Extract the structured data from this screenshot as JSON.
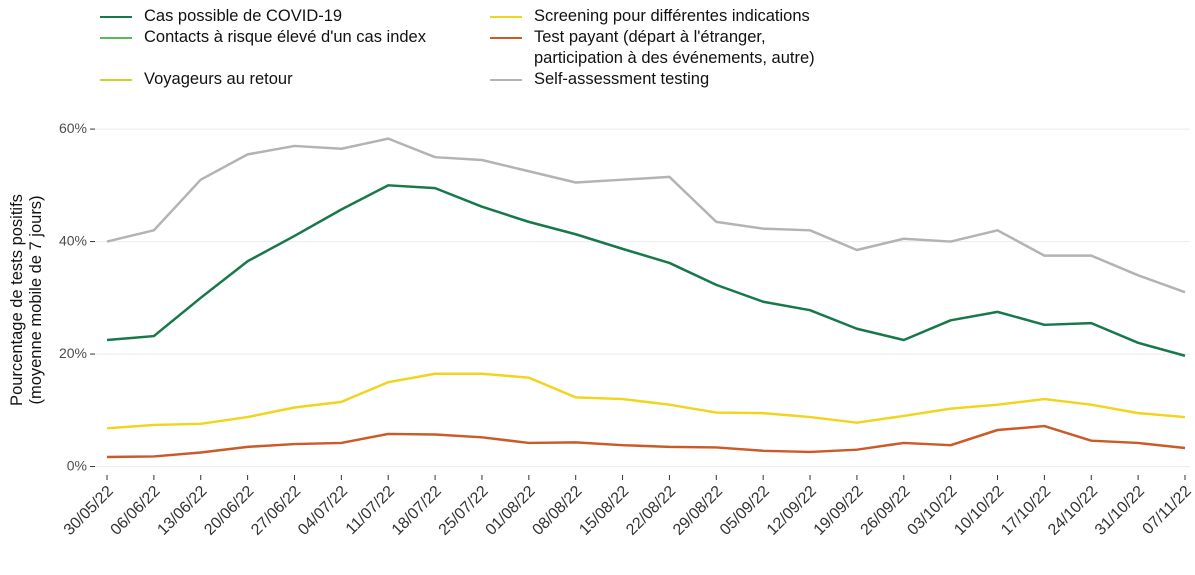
{
  "chart_data": {
    "type": "line",
    "categories": [
      "30/05/22",
      "06/06/22",
      "13/06/22",
      "20/06/22",
      "27/06/22",
      "04/07/22",
      "11/07/22",
      "18/07/22",
      "25/07/22",
      "01/08/22",
      "08/08/22",
      "15/08/22",
      "22/08/22",
      "29/08/22",
      "05/09/22",
      "12/09/22",
      "19/09/22",
      "26/09/22",
      "03/10/22",
      "10/10/22",
      "17/10/22",
      "24/10/22",
      "31/10/22",
      "07/11/22"
    ],
    "series": [
      {
        "name": "Cas possible de COVID-19",
        "color": "#17784a",
        "values": [
          22.5,
          23.2,
          30,
          36.5,
          41,
          45.7,
          50,
          49.5,
          46.2,
          43.5,
          41.3,
          38.7,
          36.2,
          32.3,
          29.3,
          27.8,
          24.5,
          22.5,
          26,
          27.5,
          25.2,
          25.5,
          22,
          19.7
        ]
      },
      {
        "name": "Contacts à risque élevé d'un cas index",
        "color": "#5cb85c",
        "values": [
          null,
          null,
          null,
          null,
          null,
          null,
          null,
          null,
          null,
          null,
          null,
          null,
          null,
          null,
          null,
          null,
          null,
          null,
          null,
          null,
          null,
          null,
          null,
          null
        ]
      },
      {
        "name": "Voyageurs au retour",
        "color": "#c9d42a",
        "values": [
          null,
          null,
          null,
          null,
          null,
          null,
          null,
          null,
          null,
          null,
          null,
          null,
          null,
          null,
          null,
          null,
          null,
          null,
          null,
          null,
          null,
          null,
          null,
          null
        ]
      },
      {
        "name": "Screening pour différentes indications",
        "color": "#f2d41c",
        "values": [
          6.8,
          7.4,
          7.6,
          8.8,
          10.5,
          11.5,
          15,
          16.5,
          16.5,
          15.8,
          12.3,
          12,
          11,
          9.6,
          9.5,
          8.8,
          7.8,
          9,
          10.3,
          11,
          12,
          11,
          9.5,
          8.8
        ]
      },
      {
        "name": "Test payant (départ à l'étranger,\nparticipation à des événements, autre)",
        "color": "#cc5a28",
        "values": [
          1.7,
          1.8,
          2.5,
          3.5,
          4.0,
          4.2,
          5.8,
          5.7,
          5.2,
          4.2,
          4.3,
          3.8,
          3.5,
          3.4,
          2.8,
          2.6,
          3.0,
          4.2,
          3.8,
          6.5,
          7.2,
          4.6,
          4.2,
          3.3
        ]
      },
      {
        "name": "Self-assessment testing",
        "color": "#b3b3b3",
        "values": [
          40,
          42,
          51,
          55.5,
          57,
          56.5,
          58.3,
          55,
          54.5,
          52.5,
          50.5,
          51,
          51.5,
          43.5,
          42.3,
          42,
          38.5,
          40.5,
          40,
          42,
          37.5,
          37.5,
          34,
          31
        ]
      }
    ],
    "ylabel": [
      "Pourcentage de tests positifs",
      "(moyenne mobile de 7 jours)"
    ],
    "ylim": [
      -1.5,
      62.5
    ],
    "yticks": [
      {
        "value": 0,
        "label": "0%"
      },
      {
        "value": 20,
        "label": "20%"
      },
      {
        "value": 40,
        "label": "40%"
      },
      {
        "value": 60,
        "label": "60%"
      }
    ],
    "grid": true
  }
}
